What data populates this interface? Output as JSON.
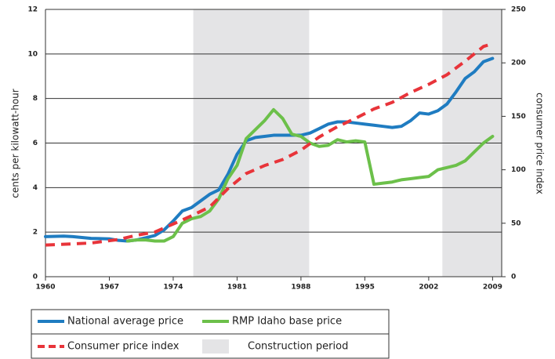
{
  "chart_data": {
    "type": "line",
    "y_label": "cents per kilowatt-hour",
    "y2_label": "consumer price index",
    "xlim": [
      1960,
      2010
    ],
    "xticks": [
      1960,
      1967,
      1974,
      1981,
      1988,
      1995,
      2002,
      2009
    ],
    "ylim": [
      0,
      12
    ],
    "yticks": [
      0,
      2,
      4,
      6,
      8,
      10,
      12
    ],
    "y2lim": [
      0,
      250
    ],
    "y2ticks": [
      0,
      50,
      100,
      150,
      200,
      250
    ],
    "grid": true,
    "shaded_label": "Construction period",
    "shaded_color": "#e4e4e6",
    "shaded_periods": [
      [
        1976.2,
        1988.9
      ],
      [
        2003.5,
        2010
      ]
    ],
    "series": [
      {
        "name": "National average price",
        "color": "#1f7cc1",
        "dash": false,
        "x": [
          1960,
          1962,
          1963,
          1965,
          1967,
          1968,
          1969,
          1970,
          1971,
          1972,
          1973,
          1974,
          1975,
          1976,
          1977,
          1978,
          1979,
          1980,
          1981,
          1982,
          1983,
          1984,
          1985,
          1986,
          1987,
          1988,
          1989,
          1990,
          1991,
          1992,
          1993,
          1994,
          1995,
          1996,
          1997,
          1998,
          1999,
          2000,
          2001,
          2002,
          2003,
          2004,
          2005,
          2006,
          2007,
          2008,
          2009
        ],
        "values": [
          1.8,
          1.82,
          1.8,
          1.72,
          1.7,
          1.63,
          1.6,
          1.65,
          1.75,
          1.85,
          2.1,
          2.5,
          2.95,
          3.1,
          3.4,
          3.7,
          3.9,
          4.6,
          5.5,
          6.1,
          6.25,
          6.3,
          6.35,
          6.35,
          6.35,
          6.35,
          6.45,
          6.65,
          6.85,
          6.95,
          6.95,
          6.9,
          6.85,
          6.8,
          6.75,
          6.7,
          6.75,
          7.0,
          7.35,
          7.3,
          7.45,
          7.75,
          8.3,
          8.9,
          9.2,
          9.65,
          9.8
        ]
      },
      {
        "name": "RMP Idaho base price",
        "color": "#6cc04a",
        "dash": false,
        "x": [
          1969,
          1970,
          1971,
          1972,
          1973,
          1974,
          1975,
          1976,
          1977,
          1978,
          1979,
          1980,
          1981,
          1982,
          1983,
          1984,
          1985,
          1986,
          1987,
          1988,
          1989,
          1990,
          1991,
          1992,
          1993,
          1994,
          1995,
          1996,
          1997,
          1998,
          1999,
          2000,
          2001,
          2002,
          2003,
          2004,
          2005,
          2006,
          2007,
          2008,
          2009
        ],
        "values": [
          1.6,
          1.65,
          1.65,
          1.6,
          1.6,
          1.8,
          2.4,
          2.6,
          2.7,
          2.95,
          3.5,
          4.4,
          5.0,
          6.2,
          6.6,
          7.0,
          7.5,
          7.1,
          6.4,
          6.3,
          6.0,
          5.85,
          5.9,
          6.15,
          6.05,
          6.1,
          6.05,
          4.15,
          4.2,
          4.25,
          4.35,
          4.4,
          4.45,
          4.5,
          4.8,
          4.9,
          5.0,
          5.2,
          5.6,
          6.0,
          6.3
        ]
      },
      {
        "name": "Consumer price index",
        "color": "#e8343a",
        "dash": true,
        "axis": "y2",
        "x": [
          1960,
          1965,
          1968,
          1970,
          1972,
          1974,
          1976,
          1978,
          1980,
          1982,
          1984,
          1986,
          1988,
          1990,
          1992,
          1994,
          1996,
          1998,
          2000,
          2002,
          2004,
          2006,
          2008,
          2009
        ],
        "values": [
          29.6,
          31.5,
          34.8,
          38.8,
          41.8,
          49.3,
          56.9,
          65.2,
          82.4,
          96.5,
          103.9,
          109.6,
          118.3,
          130.7,
          140.3,
          148.2,
          156.9,
          163.0,
          172.2,
          179.9,
          188.9,
          201.6,
          215.3,
          218.0
        ]
      }
    ]
  }
}
